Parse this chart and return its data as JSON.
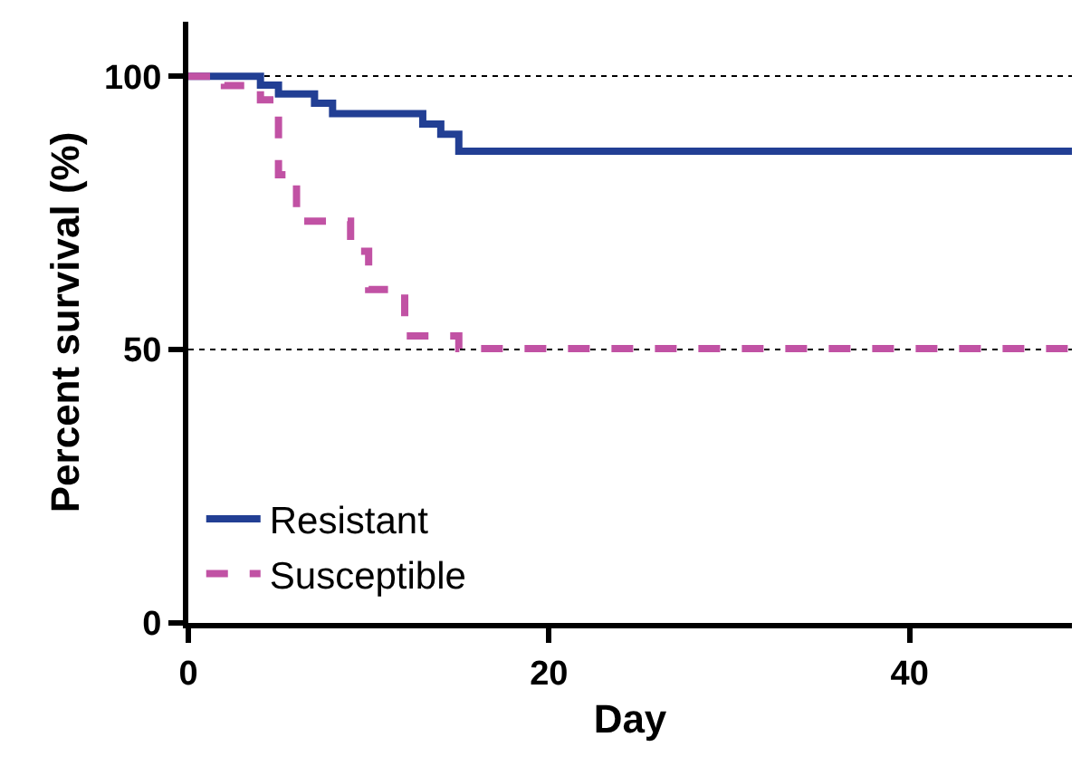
{
  "chart_data": {
    "type": "step",
    "xlabel": "Day",
    "ylabel": "Percent survival (%)",
    "xlim": [
      0,
      49
    ],
    "xticks": [
      0,
      20,
      40
    ],
    "ylim": [
      0,
      110
    ],
    "yticks": [
      0,
      50,
      100
    ],
    "grid": "y",
    "legend": "bottom left",
    "series": [
      {
        "name": "Resistant",
        "color": "#223f94",
        "line_style": "solid",
        "x": [
          0,
          4,
          5,
          7,
          8,
          13,
          14,
          15,
          49
        ],
        "values": [
          100,
          98.4,
          96.8,
          95.1,
          93.2,
          91.3,
          89.4,
          86.3,
          86.3
        ]
      },
      {
        "name": "Susceptible",
        "color": "#c152a4",
        "line_style": "dashed",
        "x": [
          0,
          2,
          4,
          5,
          6,
          9,
          10,
          12,
          15,
          49
        ],
        "values": [
          100,
          98.3,
          95.7,
          82,
          73.5,
          68,
          61,
          52.5,
          50.2,
          50.2
        ]
      }
    ]
  }
}
